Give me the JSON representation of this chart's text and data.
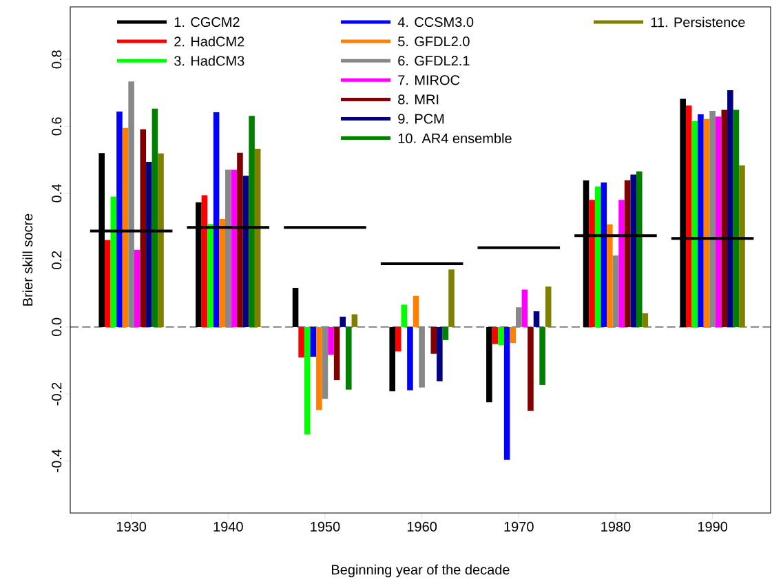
{
  "chart_data": {
    "type": "bar",
    "xlabel": "Beginning year of the decade",
    "ylabel": "Brier skill socre",
    "x": [
      1930,
      1940,
      1950,
      1960,
      1970,
      1980,
      1990
    ],
    "xlim": [
      1923.7,
      1996
    ],
    "xticks": [
      1930,
      1940,
      1950,
      1960,
      1970,
      1980,
      1990
    ],
    "ylim": [
      -0.556,
      0.957
    ],
    "yticks": [
      -0.4,
      -0.2,
      {
        "value": 0,
        "label": "0.0"
      },
      0.2,
      0.4,
      0.6,
      0.8
    ],
    "legend": "top",
    "ref_lines": [
      {
        "axis": "y",
        "value": 0,
        "color": "#000000",
        "line_style": "dashed"
      }
    ],
    "series": [
      {
        "name": "1. CGCM2",
        "color": "#000000",
        "values": [
          0.52,
          0.373,
          0.117,
          -0.192,
          -0.225,
          0.438,
          0.682
        ]
      },
      {
        "name": "2. HadCM2",
        "color": "#ff0000",
        "values": [
          0.26,
          0.394,
          -0.091,
          -0.073,
          -0.051,
          0.38,
          0.662
        ]
      },
      {
        "name": "3. HadCM3",
        "color": "#00ff00",
        "values": [
          0.39,
          0.308,
          -0.321,
          0.067,
          -0.054,
          0.42,
          0.616
        ]
      },
      {
        "name": "4. CCSM3.0",
        "color": "#0000ff",
        "values": [
          0.644,
          0.642,
          -0.089,
          -0.189,
          -0.397,
          0.432,
          0.636
        ]
      },
      {
        "name": "5. GFDL2.0",
        "color": "#ff8000",
        "values": [
          0.595,
          0.323,
          -0.248,
          0.093,
          -0.048,
          0.307,
          0.622
        ]
      },
      {
        "name": "6. GFDL2.1",
        "color": "#888888",
        "values": [
          0.734,
          0.47,
          -0.215,
          -0.181,
          0.059,
          0.214,
          0.646
        ]
      },
      {
        "name": "7. MIROC",
        "color": "#ff00ff",
        "values": [
          0.231,
          0.47,
          -0.083,
          0.0,
          0.112,
          0.38,
          0.629
        ]
      },
      {
        "name": "8. MRI",
        "color": "#800000",
        "values": [
          0.591,
          0.521,
          -0.159,
          -0.08,
          -0.251,
          0.439,
          0.649
        ]
      },
      {
        "name": "9. PCM",
        "color": "#000080",
        "values": [
          0.494,
          0.452,
          0.031,
          -0.162,
          0.047,
          0.456,
          0.708
        ]
      },
      {
        "name": "10. AR4 ensemble",
        "color": "#008000",
        "values": [
          0.653,
          0.631,
          -0.187,
          -0.039,
          -0.173,
          0.465,
          0.649
        ]
      },
      {
        "name": "11. Persistence",
        "color": "#808000",
        "values": [
          0.519,
          0.533,
          0.038,
          0.172,
          0.121,
          0.041,
          0.483
        ]
      },
      {
        "type": "line",
        "color": "#000000",
        "x": [
          1925.75,
          1934.25
        ],
        "values": [
          0.287,
          0.287
        ]
      },
      {
        "type": "line",
        "color": "#000000",
        "x": [
          1935.75,
          1944.25
        ],
        "values": [
          0.298,
          0.298
        ]
      },
      {
        "type": "line",
        "color": "#000000",
        "x": [
          1945.75,
          1954.25
        ],
        "values": [
          0.298,
          0.298
        ]
      },
      {
        "type": "line",
        "color": "#000000",
        "x": [
          1955.75,
          1964.25
        ],
        "values": [
          0.189,
          0.189
        ]
      },
      {
        "type": "line",
        "color": "#000000",
        "x": [
          1965.75,
          1974.25
        ],
        "values": [
          0.237,
          0.237
        ]
      },
      {
        "type": "line",
        "color": "#000000",
        "x": [
          1975.75,
          1984.25
        ],
        "values": [
          0.273,
          0.273
        ]
      },
      {
        "type": "line",
        "color": "#000000",
        "x": [
          1985.75,
          1994.25
        ],
        "values": [
          0.265,
          0.265
        ]
      }
    ]
  }
}
